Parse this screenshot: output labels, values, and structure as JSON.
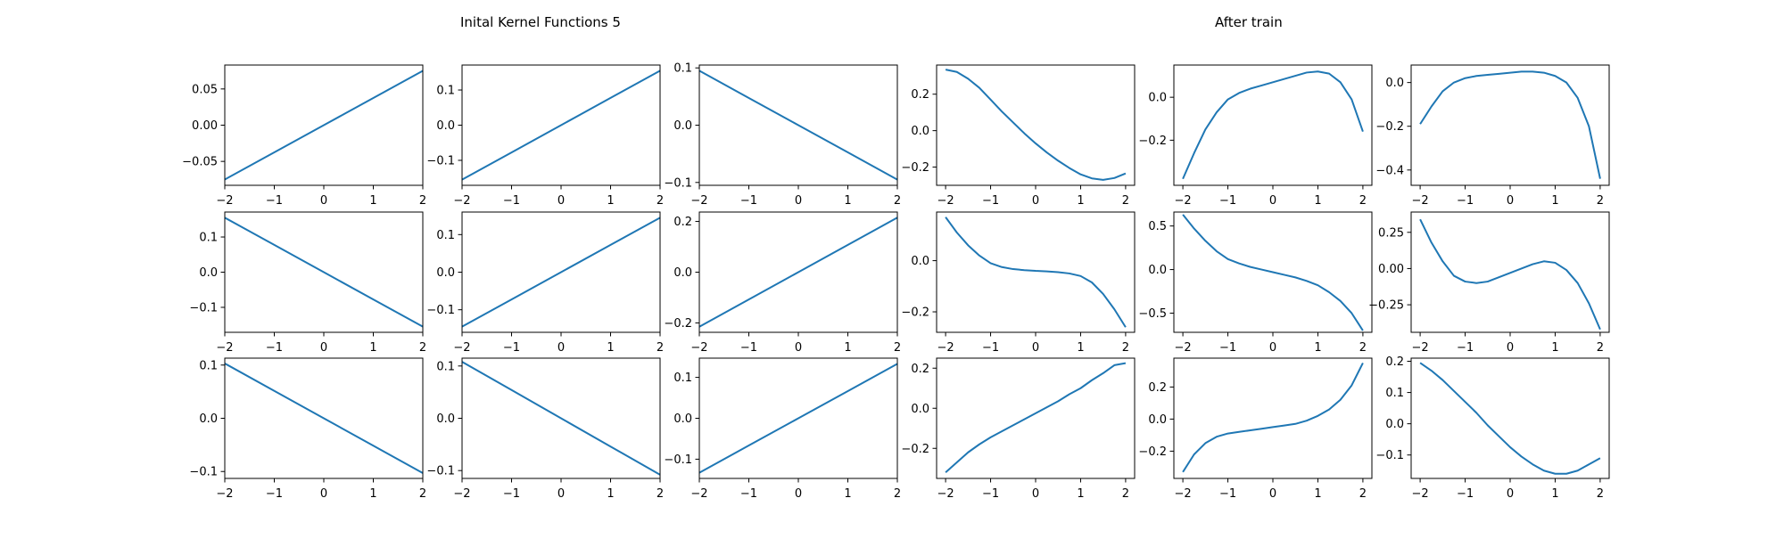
{
  "titles": {
    "left": "Inital Kernel Functions 5",
    "right": "After train"
  },
  "colors": {
    "line": "#1f77b4",
    "axes": "#000000",
    "background": "#ffffff"
  },
  "chart_data": [
    {
      "type": "line",
      "panel": "r1c1",
      "x": [
        -2,
        -1,
        0,
        1,
        2
      ],
      "y": [
        -0.075,
        -0.0375,
        0.0,
        0.0375,
        0.075
      ],
      "xlim": [
        -2,
        2
      ],
      "ylim": [
        -0.083,
        0.083
      ],
      "xticks": [
        -2,
        -1,
        0,
        1,
        2
      ],
      "yticks": [
        -0.05,
        0.0,
        0.05
      ],
      "yticklabels": [
        "−0.05",
        "0.00",
        "0.05"
      ],
      "grid": false
    },
    {
      "type": "line",
      "panel": "r1c2",
      "x": [
        -2,
        -1,
        0,
        1,
        2
      ],
      "y": [
        -0.155,
        -0.0775,
        0.0,
        0.0775,
        0.155
      ],
      "xlim": [
        -2,
        2
      ],
      "ylim": [
        -0.171,
        0.171
      ],
      "xticks": [
        -2,
        -1,
        0,
        1,
        2
      ],
      "yticks": [
        -0.1,
        0.0,
        0.1
      ],
      "yticklabels": [
        "−0.1",
        "0.0",
        "0.1"
      ],
      "grid": false
    },
    {
      "type": "line",
      "panel": "r1c3",
      "x": [
        -2,
        -1,
        0,
        1,
        2
      ],
      "y": [
        0.095,
        0.0475,
        0.0,
        -0.0475,
        -0.095
      ],
      "xlim": [
        -2,
        2
      ],
      "ylim": [
        -0.105,
        0.105
      ],
      "xticks": [
        -2,
        -1,
        0,
        1,
        2
      ],
      "yticks": [
        -0.1,
        0.0,
        0.1
      ],
      "yticklabels": [
        "−0.1",
        "0.0",
        "0.1"
      ],
      "grid": false
    },
    {
      "type": "line",
      "panel": "r1c4",
      "x": [
        -2,
        -1.75,
        -1.5,
        -1.25,
        -1,
        -0.75,
        -0.5,
        -0.25,
        0,
        0.25,
        0.5,
        0.75,
        1,
        1.25,
        1.5,
        1.75,
        2
      ],
      "y": [
        0.335,
        0.322,
        0.285,
        0.235,
        0.17,
        0.105,
        0.045,
        -0.015,
        -0.07,
        -0.12,
        -0.165,
        -0.205,
        -0.24,
        -0.262,
        -0.27,
        -0.26,
        -0.235
      ],
      "xlim": [
        -2.2,
        2.2
      ],
      "ylim": [
        -0.3,
        0.36
      ],
      "xticks": [
        -2,
        -1,
        0,
        1,
        2
      ],
      "yticks": [
        -0.2,
        0.0,
        0.2
      ],
      "yticklabels": [
        "−0.2",
        "0.0",
        "0.2"
      ],
      "grid": false
    },
    {
      "type": "line",
      "panel": "r1c5",
      "x": [
        -2,
        -1.75,
        -1.5,
        -1.25,
        -1,
        -0.75,
        -0.5,
        -0.25,
        0,
        0.25,
        0.5,
        0.75,
        1,
        1.25,
        1.5,
        1.75,
        2
      ],
      "y": [
        -0.38,
        -0.26,
        -0.15,
        -0.07,
        -0.01,
        0.02,
        0.04,
        0.055,
        0.07,
        0.085,
        0.1,
        0.115,
        0.12,
        0.11,
        0.07,
        -0.01,
        -0.16
      ],
      "xlim": [
        -2.2,
        2.2
      ],
      "ylim": [
        -0.41,
        0.15
      ],
      "xticks": [
        -2,
        -1,
        0,
        1,
        2
      ],
      "yticks": [
        -0.2,
        0.0
      ],
      "yticklabels": [
        "−0.2",
        "0.0"
      ],
      "grid": false
    },
    {
      "type": "line",
      "panel": "r1c6",
      "x": [
        -2,
        -1.75,
        -1.5,
        -1.25,
        -1,
        -0.75,
        -0.5,
        -0.25,
        0,
        0.25,
        0.5,
        0.75,
        1,
        1.25,
        1.5,
        1.75,
        2
      ],
      "y": [
        -0.19,
        -0.11,
        -0.04,
        0.0,
        0.02,
        0.03,
        0.035,
        0.04,
        0.045,
        0.05,
        0.05,
        0.045,
        0.03,
        0.0,
        -0.07,
        -0.2,
        -0.44
      ],
      "xlim": [
        -2.2,
        2.2
      ],
      "ylim": [
        -0.47,
        0.08
      ],
      "xticks": [
        -2,
        -1,
        0,
        1,
        2
      ],
      "yticks": [
        -0.4,
        -0.2,
        0.0
      ],
      "yticklabels": [
        "−0.4",
        "−0.2",
        "0.0"
      ],
      "grid": false
    },
    {
      "type": "line",
      "panel": "r2c1",
      "x": [
        -2,
        -1,
        0,
        1,
        2
      ],
      "y": [
        0.155,
        0.0775,
        0.0,
        -0.0775,
        -0.155
      ],
      "xlim": [
        -2,
        2
      ],
      "ylim": [
        -0.171,
        0.171
      ],
      "xticks": [
        -2,
        -1,
        0,
        1,
        2
      ],
      "yticks": [
        -0.1,
        0.0,
        0.1
      ],
      "yticklabels": [
        "−0.1",
        "0.0",
        "0.1"
      ],
      "grid": false
    },
    {
      "type": "line",
      "panel": "r2c2",
      "x": [
        -2,
        -1,
        0,
        1,
        2
      ],
      "y": [
        -0.145,
        -0.0725,
        0.0,
        0.0725,
        0.145
      ],
      "xlim": [
        -2,
        2
      ],
      "ylim": [
        -0.16,
        0.16
      ],
      "xticks": [
        -2,
        -1,
        0,
        1,
        2
      ],
      "yticks": [
        -0.1,
        0.0,
        0.1
      ],
      "yticklabels": [
        "−0.1",
        "0.0",
        "0.1"
      ],
      "grid": false
    },
    {
      "type": "line",
      "panel": "r2c3",
      "x": [
        -2,
        -1,
        0,
        1,
        2
      ],
      "y": [
        -0.215,
        -0.1075,
        0.0,
        0.1075,
        0.215
      ],
      "xlim": [
        -2,
        2
      ],
      "ylim": [
        -0.237,
        0.237
      ],
      "xticks": [
        -2,
        -1,
        0,
        1,
        2
      ],
      "yticks": [
        -0.2,
        0.0,
        0.2
      ],
      "yticklabels": [
        "−0.2",
        "0.0",
        "0.2"
      ],
      "grid": false
    },
    {
      "type": "line",
      "panel": "r2c4",
      "x": [
        -2,
        -1.75,
        -1.5,
        -1.25,
        -1,
        -0.75,
        -0.5,
        -0.25,
        0,
        0.25,
        0.5,
        0.75,
        1,
        1.25,
        1.5,
        1.75,
        2
      ],
      "y": [
        0.17,
        0.11,
        0.06,
        0.02,
        -0.01,
        -0.025,
        -0.033,
        -0.037,
        -0.04,
        -0.042,
        -0.045,
        -0.05,
        -0.06,
        -0.085,
        -0.13,
        -0.19,
        -0.26
      ],
      "xlim": [
        -2.2,
        2.2
      ],
      "ylim": [
        -0.28,
        0.19
      ],
      "xticks": [
        -2,
        -1,
        0,
        1,
        2
      ],
      "yticks": [
        -0.2,
        0.0
      ],
      "yticklabels": [
        "−0.2",
        "0.0"
      ],
      "grid": false
    },
    {
      "type": "line",
      "panel": "r2c5",
      "x": [
        -2,
        -1.75,
        -1.5,
        -1.25,
        -1,
        -0.75,
        -0.5,
        -0.25,
        0,
        0.25,
        0.5,
        0.75,
        1,
        1.25,
        1.5,
        1.75,
        2
      ],
      "y": [
        0.63,
        0.47,
        0.33,
        0.21,
        0.12,
        0.07,
        0.03,
        0.0,
        -0.03,
        -0.06,
        -0.09,
        -0.13,
        -0.18,
        -0.26,
        -0.36,
        -0.5,
        -0.7
      ],
      "xlim": [
        -2.2,
        2.2
      ],
      "ylim": [
        -0.72,
        0.66
      ],
      "xticks": [
        -2,
        -1,
        0,
        1,
        2
      ],
      "yticks": [
        -0.5,
        0.0,
        0.5
      ],
      "yticklabels": [
        "−0.5",
        "0.0",
        "0.5"
      ],
      "grid": false
    },
    {
      "type": "line",
      "panel": "r2c6",
      "x": [
        -2,
        -1.75,
        -1.5,
        -1.25,
        -1,
        -0.75,
        -0.5,
        -0.25,
        0,
        0.25,
        0.5,
        0.75,
        1,
        1.25,
        1.5,
        1.75,
        2
      ],
      "y": [
        0.34,
        0.18,
        0.05,
        -0.05,
        -0.09,
        -0.1,
        -0.09,
        -0.06,
        -0.03,
        0.0,
        0.03,
        0.05,
        0.04,
        -0.01,
        -0.1,
        -0.24,
        -0.42
      ],
      "xlim": [
        -2.2,
        2.2
      ],
      "ylim": [
        -0.44,
        0.39
      ],
      "xticks": [
        -2,
        -1,
        0,
        1,
        2
      ],
      "yticks": [
        -0.25,
        0.0,
        0.25
      ],
      "yticklabels": [
        "−0.25",
        "0.00",
        "0.25"
      ],
      "grid": false
    },
    {
      "type": "line",
      "panel": "r3c1",
      "x": [
        -2,
        -1,
        0,
        1,
        2
      ],
      "y": [
        0.103,
        0.0515,
        0.0,
        -0.0515,
        -0.103
      ],
      "xlim": [
        -2,
        2
      ],
      "ylim": [
        -0.113,
        0.113
      ],
      "xticks": [
        -2,
        -1,
        0,
        1,
        2
      ],
      "yticks": [
        -0.1,
        0.0,
        0.1
      ],
      "yticklabels": [
        "−0.1",
        "0.0",
        "0.1"
      ],
      "grid": false
    },
    {
      "type": "line",
      "panel": "r3c2",
      "x": [
        -2,
        -1,
        0,
        1,
        2
      ],
      "y": [
        0.108,
        0.054,
        0.0,
        -0.054,
        -0.108
      ],
      "xlim": [
        -2,
        2
      ],
      "ylim": [
        -0.115,
        0.115
      ],
      "xticks": [
        -2,
        -1,
        0,
        1,
        2
      ],
      "yticks": [
        -0.1,
        0.0,
        0.1
      ],
      "yticklabels": [
        "−0.1",
        "0.0",
        "0.1"
      ],
      "grid": false
    },
    {
      "type": "line",
      "panel": "r3c3",
      "x": [
        -2,
        -1,
        0,
        1,
        2
      ],
      "y": [
        -0.133,
        -0.0665,
        0.0,
        0.0665,
        0.133
      ],
      "xlim": [
        -2,
        2
      ],
      "ylim": [
        -0.147,
        0.147
      ],
      "xticks": [
        -2,
        -1,
        0,
        1,
        2
      ],
      "yticks": [
        -0.1,
        0.0,
        0.1
      ],
      "yticklabels": [
        "−0.1",
        "0.0",
        "0.1"
      ],
      "grid": false
    },
    {
      "type": "line",
      "panel": "r3c4",
      "x": [
        -2,
        -1.75,
        -1.5,
        -1.25,
        -1,
        -0.75,
        -0.5,
        -0.25,
        0,
        0.25,
        0.5,
        0.75,
        1,
        1.25,
        1.5,
        1.75,
        2
      ],
      "y": [
        -0.32,
        -0.27,
        -0.22,
        -0.18,
        -0.145,
        -0.115,
        -0.085,
        -0.055,
        -0.025,
        0.005,
        0.035,
        0.07,
        0.1,
        0.14,
        0.175,
        0.215,
        0.225
      ],
      "xlim": [
        -2.2,
        2.2
      ],
      "ylim": [
        -0.35,
        0.25
      ],
      "xticks": [
        -2,
        -1,
        0,
        1,
        2
      ],
      "yticks": [
        -0.2,
        0.0,
        0.2
      ],
      "yticklabels": [
        "−0.2",
        "0.0",
        "0.2"
      ],
      "grid": false
    },
    {
      "type": "line",
      "panel": "r3c5",
      "x": [
        -2,
        -1.75,
        -1.5,
        -1.25,
        -1,
        -0.75,
        -0.5,
        -0.25,
        0,
        0.25,
        0.5,
        0.75,
        1,
        1.25,
        1.5,
        1.75,
        2
      ],
      "y": [
        -0.33,
        -0.22,
        -0.15,
        -0.11,
        -0.09,
        -0.08,
        -0.07,
        -0.06,
        -0.05,
        -0.04,
        -0.03,
        -0.01,
        0.02,
        0.06,
        0.12,
        0.21,
        0.35
      ],
      "xlim": [
        -2.2,
        2.2
      ],
      "ylim": [
        -0.37,
        0.38
      ],
      "xticks": [
        -2,
        -1,
        0,
        1,
        2
      ],
      "yticks": [
        -0.2,
        0.0,
        0.2
      ],
      "yticklabels": [
        "−0.2",
        "0.0",
        "0.2"
      ],
      "grid": false
    },
    {
      "type": "line",
      "panel": "r3c6",
      "x": [
        -2,
        -1.75,
        -1.5,
        -1.25,
        -1,
        -0.75,
        -0.5,
        -0.25,
        0,
        0.25,
        0.5,
        0.75,
        1,
        1.25,
        1.5,
        1.75,
        2
      ],
      "y": [
        0.195,
        0.17,
        0.14,
        0.105,
        0.07,
        0.035,
        -0.005,
        -0.04,
        -0.075,
        -0.105,
        -0.13,
        -0.15,
        -0.16,
        -0.16,
        -0.15,
        -0.13,
        -0.11
      ],
      "xlim": [
        -2.2,
        2.2
      ],
      "ylim": [
        -0.175,
        0.21
      ],
      "xticks": [
        -2,
        -1,
        0,
        1,
        2
      ],
      "yticks": [
        -0.1,
        0.0,
        0.1,
        0.2
      ],
      "yticklabels": [
        "−0.1",
        "0.0",
        "0.1",
        "0.2"
      ],
      "grid": false
    }
  ]
}
